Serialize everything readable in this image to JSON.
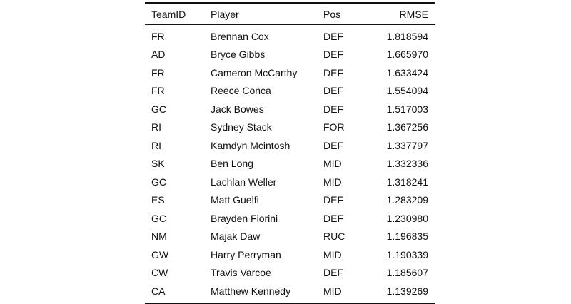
{
  "table": {
    "headers": [
      "TeamID",
      "Player",
      "Pos",
      "RMSE"
    ],
    "rows": [
      [
        "FR",
        "Brennan Cox",
        "DEF",
        "1.818594"
      ],
      [
        "AD",
        "Bryce Gibbs",
        "DEF",
        "1.665970"
      ],
      [
        "FR",
        "Cameron McCarthy",
        "DEF",
        "1.633424"
      ],
      [
        "FR",
        "Reece Conca",
        "DEF",
        "1.554094"
      ],
      [
        "GC",
        "Jack Bowes",
        "DEF",
        "1.517003"
      ],
      [
        "RI",
        "Sydney Stack",
        "FOR",
        "1.367256"
      ],
      [
        "RI",
        "Kamdyn Mcintosh",
        "DEF",
        "1.337797"
      ],
      [
        "SK",
        "Ben Long",
        "MID",
        "1.332336"
      ],
      [
        "GC",
        "Lachlan Weller",
        "MID",
        "1.318241"
      ],
      [
        "ES",
        "Matt Guelfi",
        "DEF",
        "1.283209"
      ],
      [
        "GC",
        "Brayden Fiorini",
        "DEF",
        "1.230980"
      ],
      [
        "NM",
        "Majak Daw",
        "RUC",
        "1.196835"
      ],
      [
        "GW",
        "Harry Perryman",
        "MID",
        "1.190339"
      ],
      [
        "CW",
        "Travis Varcoe",
        "DEF",
        "1.185607"
      ],
      [
        "CA",
        "Matthew Kennedy",
        "MID",
        "1.139269"
      ]
    ]
  }
}
